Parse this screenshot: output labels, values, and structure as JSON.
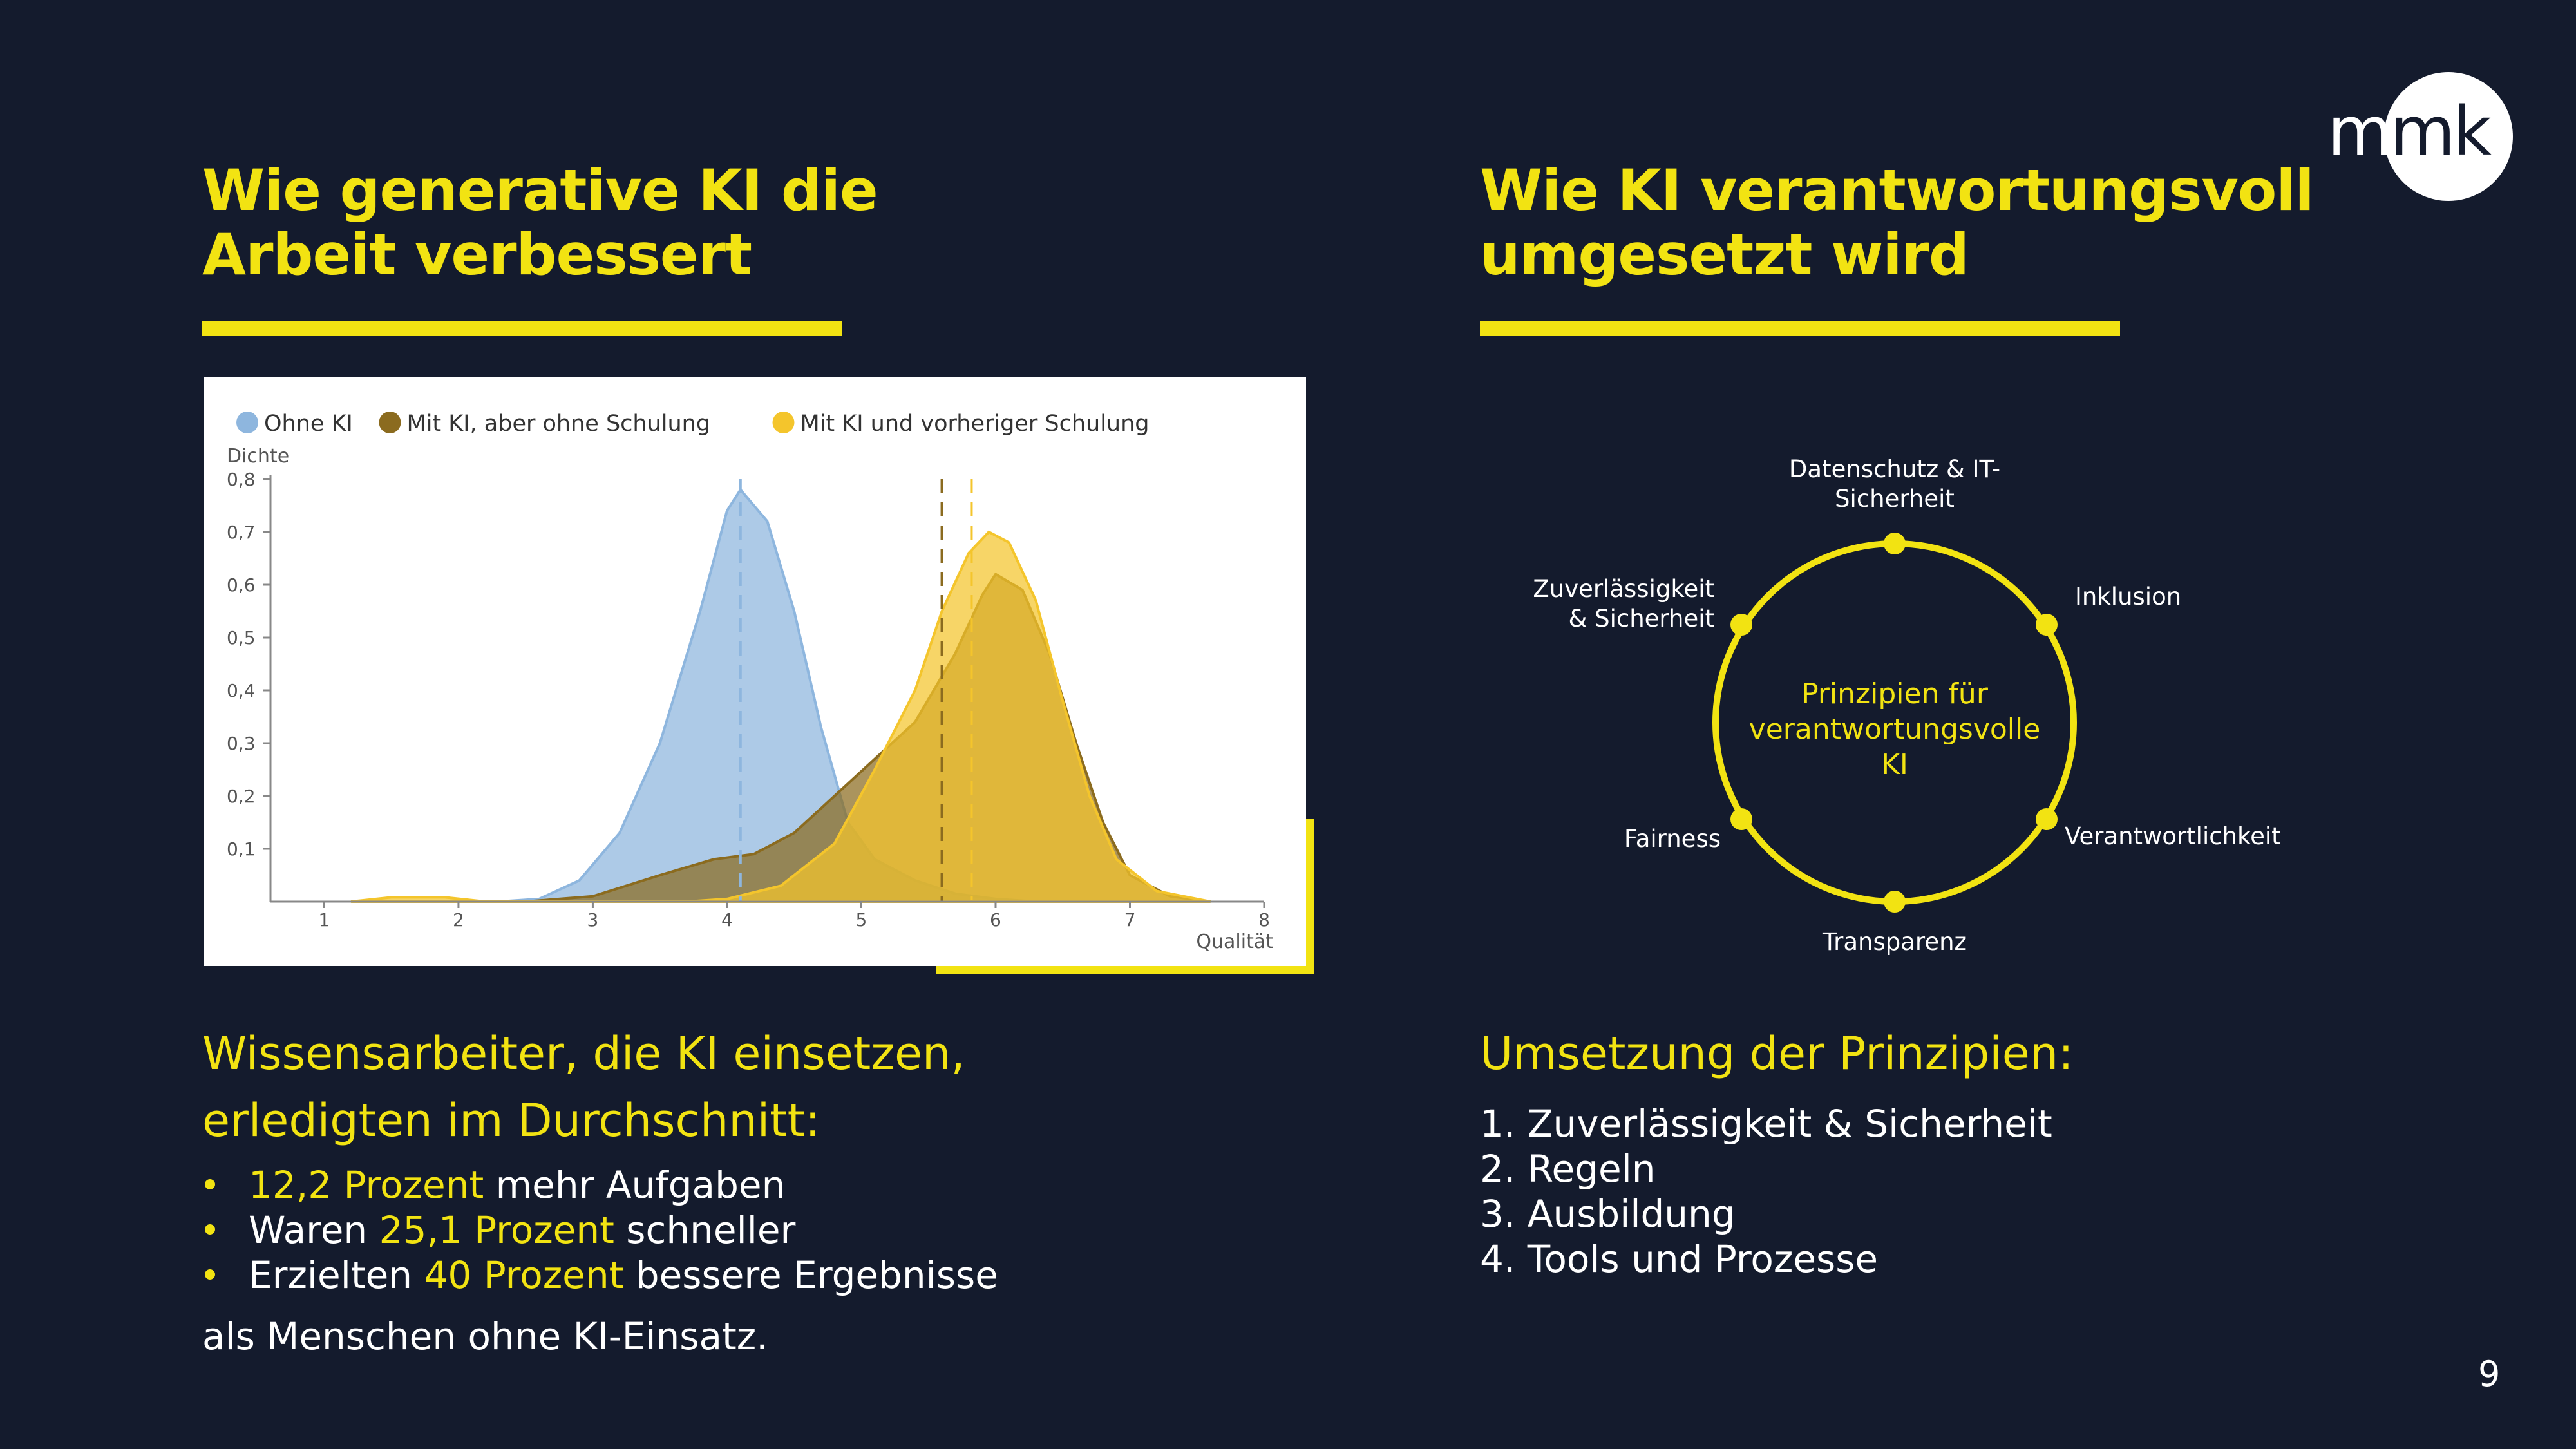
{
  "logo": {
    "text_light": "m",
    "text_dark": "mk"
  },
  "left": {
    "title_line1": "Wie generative KI die",
    "title_line2": "Arbeit verbessert",
    "subtitle_line1": "Wissensarbeiter, die KI einsetzen,",
    "subtitle_line2": "erledigten im Durchschnitt:",
    "bullets": [
      {
        "hl": "12,2 Prozent",
        "pre": "",
        "post": " mehr Aufgaben"
      },
      {
        "pre": "Waren ",
        "hl": "25,1 Prozent",
        "post": " schneller"
      },
      {
        "pre": "Erzielten ",
        "hl": "40 Prozent",
        "post": " bessere Ergebnisse"
      }
    ],
    "closing": "als Menschen ohne KI-Einsatz."
  },
  "chart_data": {
    "type": "area",
    "ylabel": "Dichte",
    "xlabel": "Qualität",
    "xlim": [
      0.6,
      8
    ],
    "ylim": [
      0,
      0.8
    ],
    "xticks": [
      "1",
      "2",
      "3",
      "4",
      "5",
      "6",
      "7",
      "8"
    ],
    "yticks": [
      "0,1",
      "0,2",
      "0,3",
      "0,4",
      "0,5",
      "0,6",
      "0,7",
      "0,8"
    ],
    "legend_position": "top-left",
    "series": [
      {
        "name": "Ohne KI",
        "color": "#8eb6de",
        "mean": 4.1,
        "points": [
          [
            2.3,
            0
          ],
          [
            2.6,
            0.005
          ],
          [
            2.9,
            0.04
          ],
          [
            3.2,
            0.13
          ],
          [
            3.5,
            0.3
          ],
          [
            3.8,
            0.55
          ],
          [
            4.0,
            0.74
          ],
          [
            4.1,
            0.78
          ],
          [
            4.3,
            0.72
          ],
          [
            4.5,
            0.55
          ],
          [
            4.7,
            0.33
          ],
          [
            4.9,
            0.15
          ],
          [
            5.1,
            0.08
          ],
          [
            5.4,
            0.04
          ],
          [
            5.7,
            0.015
          ],
          [
            6.0,
            0.005
          ],
          [
            6.3,
            0
          ]
        ]
      },
      {
        "name": "Mit KI, aber ohne Schulung",
        "color": "#8b6b1f",
        "mean": 5.6,
        "points": [
          [
            2.5,
            0
          ],
          [
            3.0,
            0.01
          ],
          [
            3.5,
            0.05
          ],
          [
            3.9,
            0.08
          ],
          [
            4.2,
            0.09
          ],
          [
            4.5,
            0.13
          ],
          [
            4.8,
            0.2
          ],
          [
            5.1,
            0.27
          ],
          [
            5.4,
            0.34
          ],
          [
            5.7,
            0.47
          ],
          [
            5.9,
            0.58
          ],
          [
            6.0,
            0.62
          ],
          [
            6.2,
            0.59
          ],
          [
            6.4,
            0.47
          ],
          [
            6.6,
            0.3
          ],
          [
            6.8,
            0.15
          ],
          [
            7.0,
            0.05
          ],
          [
            7.3,
            0.01
          ],
          [
            7.6,
            0
          ]
        ]
      },
      {
        "name": "Mit KI und vorheriger Schulung",
        "color": "#f4c52c",
        "mean": 5.82,
        "points": [
          [
            1.2,
            0
          ],
          [
            1.5,
            0.008
          ],
          [
            1.9,
            0.008
          ],
          [
            2.2,
            0
          ],
          [
            3.7,
            0
          ],
          [
            4.0,
            0.005
          ],
          [
            4.4,
            0.03
          ],
          [
            4.8,
            0.11
          ],
          [
            5.1,
            0.25
          ],
          [
            5.4,
            0.4
          ],
          [
            5.6,
            0.55
          ],
          [
            5.8,
            0.66
          ],
          [
            5.95,
            0.7
          ],
          [
            6.1,
            0.68
          ],
          [
            6.3,
            0.57
          ],
          [
            6.5,
            0.38
          ],
          [
            6.7,
            0.2
          ],
          [
            6.9,
            0.08
          ],
          [
            7.2,
            0.02
          ],
          [
            7.6,
            0
          ]
        ]
      }
    ]
  },
  "right": {
    "title_line1": "Wie KI verantwortungsvoll",
    "title_line2": "umgesetzt wird",
    "diagram": {
      "center_line1": "Prinzipien für",
      "center_line2": "verantwortungsvolle",
      "center_line3": "KI",
      "top_line1": "Datenschutz & IT-",
      "top_line2": "Sicherheit",
      "topright": "Inklusion",
      "bottomright": "Verantwortlichkeit",
      "bottom": "Transparenz",
      "bottomleft": "Fairness",
      "topleft_line1": "Zuverlässigkeit",
      "topleft_line2": "& Sicherheit"
    },
    "subtitle": "Umsetzung der Prinzipien:",
    "items": [
      "1. Zuverlässigkeit & Sicherheit",
      "2. Regeln",
      "3. Ausbildung",
      "4. Tools und Prozesse"
    ]
  },
  "page_number": "9",
  "colors": {
    "background": "#141b2d",
    "accent": "#f2e312",
    "white": "#ffffff"
  }
}
